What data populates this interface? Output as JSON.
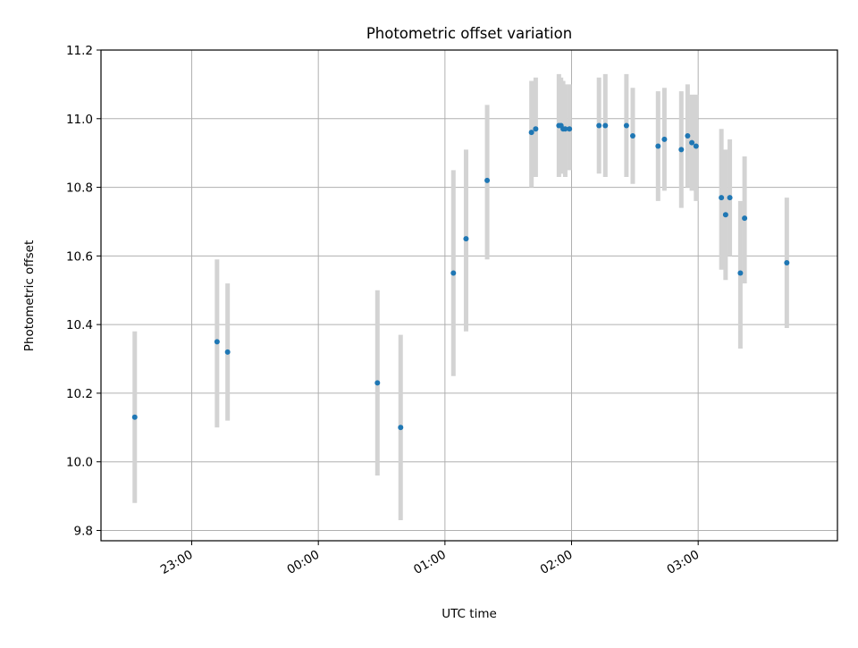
{
  "chart_data": {
    "type": "scatter",
    "title": "Photometric offset variation",
    "xlabel": "UTC time",
    "ylabel": "Photometric offset",
    "x_is_time": true,
    "xlim": [
      "22:17",
      "04:06"
    ],
    "ylim": [
      9.77,
      11.2
    ],
    "x_ticks": [
      "23:00",
      "00:00",
      "01:00",
      "02:00",
      "03:00"
    ],
    "y_ticks": [
      "9.8",
      "10.0",
      "10.2",
      "10.4",
      "10.6",
      "10.8",
      "11.0",
      "11.2"
    ],
    "grid": true,
    "colors": {
      "point": "#1f77b4",
      "errorbar": "#d3d3d3",
      "grid": "#b0b0b0",
      "axes": "#000000"
    },
    "series": [
      {
        "points": [
          {
            "x": "22:33",
            "y": 10.13,
            "ylo": 9.88,
            "yhi": 10.38
          },
          {
            "x": "23:12",
            "y": 10.35,
            "ylo": 10.1,
            "yhi": 10.59
          },
          {
            "x": "23:17",
            "y": 10.32,
            "ylo": 10.12,
            "yhi": 10.52
          },
          {
            "x": "00:28",
            "y": 10.23,
            "ylo": 9.96,
            "yhi": 10.5
          },
          {
            "x": "00:39",
            "y": 10.1,
            "ylo": 9.83,
            "yhi": 10.37
          },
          {
            "x": "01:04",
            "y": 10.55,
            "ylo": 10.25,
            "yhi": 10.85
          },
          {
            "x": "01:10",
            "y": 10.65,
            "ylo": 10.38,
            "yhi": 10.91
          },
          {
            "x": "01:20",
            "y": 10.82,
            "ylo": 10.59,
            "yhi": 11.04
          },
          {
            "x": "01:41",
            "y": 10.96,
            "ylo": 10.8,
            "yhi": 11.11
          },
          {
            "x": "01:43",
            "y": 10.97,
            "ylo": 10.83,
            "yhi": 11.12
          },
          {
            "x": "01:54",
            "y": 10.98,
            "ylo": 10.83,
            "yhi": 11.13
          },
          {
            "x": "01:55",
            "y": 10.98,
            "ylo": 10.84,
            "yhi": 11.12
          },
          {
            "x": "01:56",
            "y": 10.97,
            "ylo": 10.84,
            "yhi": 11.11
          },
          {
            "x": "01:57",
            "y": 10.97,
            "ylo": 10.83,
            "yhi": 11.1
          },
          {
            "x": "01:59",
            "y": 10.97,
            "ylo": 10.85,
            "yhi": 11.1
          },
          {
            "x": "02:13",
            "y": 10.98,
            "ylo": 10.84,
            "yhi": 11.12
          },
          {
            "x": "02:16",
            "y": 10.98,
            "ylo": 10.83,
            "yhi": 11.13
          },
          {
            "x": "02:26",
            "y": 10.98,
            "ylo": 10.83,
            "yhi": 11.13
          },
          {
            "x": "02:29",
            "y": 10.95,
            "ylo": 10.81,
            "yhi": 11.09
          },
          {
            "x": "02:41",
            "y": 10.92,
            "ylo": 10.76,
            "yhi": 11.08
          },
          {
            "x": "02:44",
            "y": 10.94,
            "ylo": 10.79,
            "yhi": 11.09
          },
          {
            "x": "02:52",
            "y": 10.91,
            "ylo": 10.74,
            "yhi": 11.08
          },
          {
            "x": "02:55",
            "y": 10.95,
            "ylo": 10.8,
            "yhi": 11.1
          },
          {
            "x": "02:57",
            "y": 10.93,
            "ylo": 10.79,
            "yhi": 11.07
          },
          {
            "x": "02:59",
            "y": 10.92,
            "ylo": 10.76,
            "yhi": 11.07
          },
          {
            "x": "03:11",
            "y": 10.77,
            "ylo": 10.56,
            "yhi": 10.97
          },
          {
            "x": "03:13",
            "y": 10.72,
            "ylo": 10.53,
            "yhi": 10.91
          },
          {
            "x": "03:15",
            "y": 10.77,
            "ylo": 10.6,
            "yhi": 10.94
          },
          {
            "x": "03:20",
            "y": 10.55,
            "ylo": 10.33,
            "yhi": 10.76
          },
          {
            "x": "03:22",
            "y": 10.71,
            "ylo": 10.52,
            "yhi": 10.89
          },
          {
            "x": "03:42",
            "y": 10.58,
            "ylo": 10.39,
            "yhi": 10.77
          }
        ]
      }
    ]
  }
}
